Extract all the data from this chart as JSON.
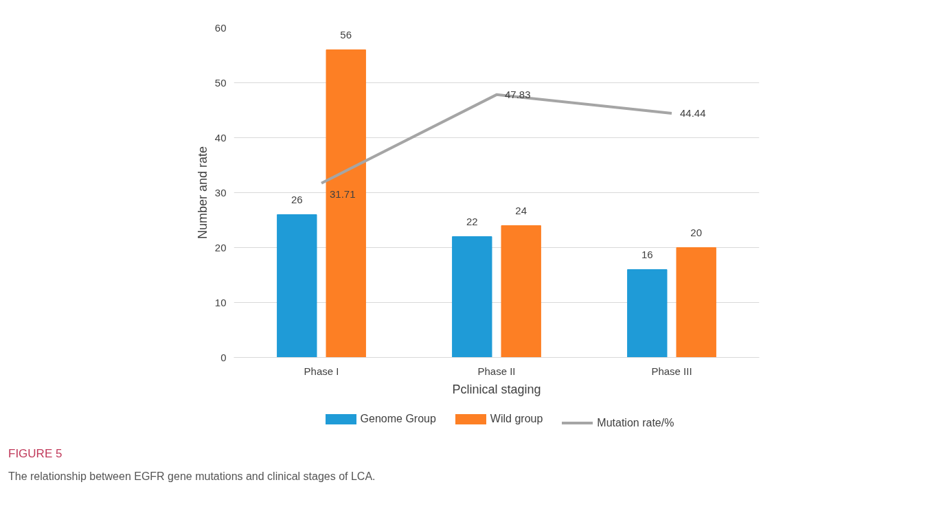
{
  "chart_data": {
    "type": "bar",
    "xlabel": "Pclinical staging",
    "ylabel": "Number and rate",
    "categories": [
      "Phase I",
      "Phase II",
      "Phase III"
    ],
    "series": [
      {
        "name": "Genome Group",
        "color": "#1f9bd7",
        "values": [
          26,
          22,
          16
        ]
      },
      {
        "name": "Wild group",
        "color": "#fd7f24",
        "values": [
          56,
          24,
          20
        ]
      },
      {
        "name": "Mutation rate/%",
        "type": "line",
        "color": "#a5a5a5",
        "values": [
          31.71,
          47.83,
          44.44
        ]
      }
    ],
    "ylim": [
      0,
      60
    ],
    "yticks": [
      0,
      10,
      20,
      30,
      40,
      50,
      60
    ],
    "grid": "y",
    "legend": "bottom",
    "data_labels": true,
    "annotations": [
      "FIGURE 5",
      "The relationship between EGFR gene mutations and clinical stages of LCA."
    ]
  }
}
